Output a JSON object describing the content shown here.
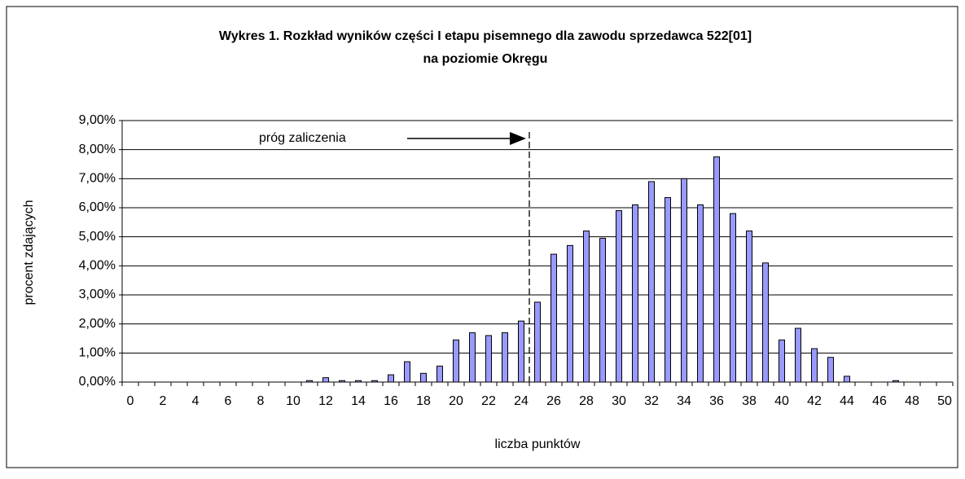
{
  "chart_data": {
    "type": "bar",
    "title": [
      "Wykres 1. Rozkład wyników części I etapu pisemnego dla zawodu sprzedawca 522[01]",
      "na poziomie Okręgu"
    ],
    "xlabel": "liczba punktów",
    "ylabel": "procent zdających",
    "categories": [
      0,
      null,
      2,
      null,
      4,
      null,
      6,
      null,
      8,
      null,
      10,
      null,
      12,
      null,
      14,
      null,
      16,
      null,
      18,
      null,
      20,
      null,
      22,
      null,
      24,
      null,
      26,
      null,
      28,
      null,
      30,
      null,
      32,
      null,
      34,
      null,
      36,
      null,
      38,
      null,
      40,
      null,
      42,
      null,
      44,
      null,
      46,
      null,
      48,
      null,
      50
    ],
    "values": [
      0,
      0,
      0,
      0,
      0,
      0,
      0,
      0,
      0,
      0,
      0,
      0.05,
      0.15,
      0.05,
      0.05,
      0.05,
      0.25,
      0.7,
      0.3,
      0.55,
      1.45,
      1.7,
      1.6,
      1.7,
      2.1,
      2.75,
      4.4,
      4.7,
      5.2,
      4.95,
      5.9,
      6.1,
      6.9,
      6.35,
      7.0,
      6.1,
      7.75,
      5.8,
      5.2,
      4.1,
      1.45,
      1.85,
      1.15,
      0.85,
      0.2,
      0,
      0,
      0.05,
      0,
      0,
      0
    ],
    "color": "#9999ff",
    "ylim": [
      0,
      9
    ],
    "yticks": [
      {
        "value": 0,
        "label": "0,00%"
      },
      {
        "value": 1,
        "label": "1,00%"
      },
      {
        "value": 2,
        "label": "2,00%"
      },
      {
        "value": 3,
        "label": "3,00%"
      },
      {
        "value": 4,
        "label": "4,00%"
      },
      {
        "value": 5,
        "label": "5,00%"
      },
      {
        "value": 6,
        "label": "6,00%"
      },
      {
        "value": 7,
        "label": "7,00%"
      },
      {
        "value": 8,
        "label": "8,00%"
      },
      {
        "value": 9,
        "label": "9,00%"
      }
    ],
    "grid": true,
    "annotation": {
      "text": "próg zaliczenia",
      "x": 24.5
    }
  }
}
